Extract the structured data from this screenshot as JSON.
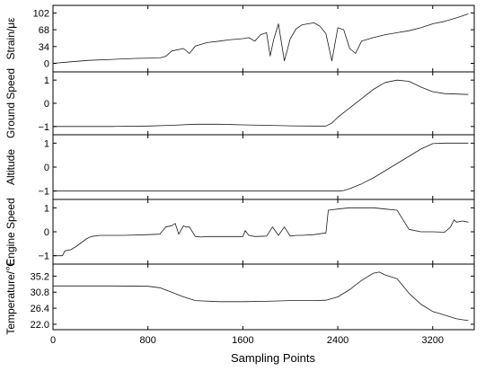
{
  "chart_data": {
    "type": "line",
    "title": "",
    "xlabel": "Sampling Points",
    "xlim": [
      0,
      3550
    ],
    "xticks": [
      0,
      800,
      1600,
      2400,
      3200
    ],
    "shared_x_axis": true,
    "grid": false,
    "panels": [
      {
        "ylabel": "Strain/με",
        "ylim": [
          -10,
          110
        ],
        "yticks": [
          "0",
          "34",
          "68",
          "102"
        ],
        "ytick_values": [
          0,
          34,
          68,
          102
        ],
        "x": [
          0,
          150,
          300,
          500,
          700,
          900,
          950,
          1000,
          1100,
          1150,
          1200,
          1300,
          1400,
          1500,
          1600,
          1650,
          1700,
          1750,
          1800,
          1830,
          1860,
          1900,
          1950,
          2000,
          2050,
          2100,
          2200,
          2250,
          2300,
          2350,
          2400,
          2450,
          2500,
          2550,
          2600,
          2700,
          2800,
          2900,
          3000,
          3100,
          3200,
          3300,
          3400,
          3500
        ],
        "y": [
          0,
          3,
          6,
          8,
          10,
          11,
          14,
          25,
          30,
          20,
          35,
          42,
          45,
          48,
          50,
          52,
          45,
          58,
          62,
          15,
          48,
          80,
          5,
          50,
          70,
          78,
          82,
          75,
          60,
          5,
          72,
          68,
          30,
          20,
          45,
          52,
          58,
          62,
          66,
          72,
          80,
          85,
          92,
          100
        ]
      },
      {
        "ylabel": "Ground Speed",
        "ylim": [
          -1.2,
          1.2
        ],
        "yticks": [
          "−1",
          "0",
          "1"
        ],
        "ytick_values": [
          -1,
          0,
          1
        ],
        "x": [
          0,
          500,
          800,
          1000,
          1200,
          1400,
          1600,
          1800,
          2000,
          2200,
          2300,
          2350,
          2400,
          2500,
          2600,
          2700,
          2800,
          2900,
          3000,
          3100,
          3200,
          3300,
          3400,
          3500
        ],
        "y": [
          -1,
          -1,
          -0.98,
          -0.95,
          -0.9,
          -0.9,
          -0.93,
          -0.95,
          -0.97,
          -0.98,
          -0.98,
          -0.85,
          -0.6,
          -0.2,
          0.2,
          0.6,
          0.9,
          1.0,
          0.95,
          0.7,
          0.5,
          0.42,
          0.4,
          0.38
        ]
      },
      {
        "ylabel": "Altitude",
        "ylim": [
          -1.2,
          1.2
        ],
        "yticks": [
          "−1",
          "0",
          "1"
        ],
        "ytick_values": [
          -1,
          0,
          1
        ],
        "x": [
          0,
          500,
          1000,
          1500,
          2000,
          2300,
          2400,
          2450,
          2500,
          2600,
          2700,
          2800,
          2900,
          3000,
          3100,
          3200,
          3300,
          3400,
          3500
        ],
        "y": [
          -1,
          -1,
          -1,
          -1,
          -1,
          -1,
          -1,
          -0.98,
          -0.9,
          -0.7,
          -0.45,
          -0.15,
          0.15,
          0.45,
          0.75,
          0.98,
          1.0,
          1.0,
          1.0
        ]
      },
      {
        "ylabel": "Engine Speed",
        "ylim": [
          -1.2,
          1.2
        ],
        "yticks": [
          "−1",
          "0",
          "1"
        ],
        "ytick_values": [
          -1,
          0,
          1
        ],
        "x": [
          0,
          80,
          100,
          150,
          200,
          280,
          320,
          400,
          600,
          800,
          900,
          950,
          1000,
          1030,
          1060,
          1100,
          1120,
          1150,
          1200,
          1250,
          1300,
          1600,
          1620,
          1650,
          1700,
          1800,
          1850,
          1900,
          1950,
          2000,
          2050,
          2100,
          2200,
          2300,
          2320,
          2400,
          2500,
          2700,
          2800,
          2900,
          2950,
          3000,
          3100,
          3200,
          3300,
          3350,
          3380,
          3400,
          3450,
          3500
        ],
        "y": [
          -1,
          -1,
          -0.8,
          -0.75,
          -0.6,
          -0.3,
          -0.2,
          -0.15,
          -0.15,
          -0.12,
          -0.1,
          0.2,
          0.25,
          0.35,
          -0.1,
          0.25,
          0.2,
          0.2,
          -0.2,
          -0.22,
          -0.2,
          -0.2,
          0.05,
          -0.15,
          -0.2,
          -0.18,
          0.2,
          -0.15,
          0.2,
          -0.18,
          -0.15,
          -0.15,
          -0.12,
          -0.05,
          0.9,
          0.95,
          1.0,
          1.0,
          0.95,
          0.9,
          0.5,
          0.1,
          0.0,
          0.0,
          -0.02,
          0.2,
          0.5,
          0.4,
          0.45,
          0.4
        ]
      },
      {
        "ylabel": "Temperature/℃",
        "ylim": [
          21.5,
          37.5
        ],
        "yticks": [
          "22.0",
          "26.4",
          "30.8",
          "35.2"
        ],
        "ytick_values": [
          22.0,
          26.4,
          30.8,
          35.2
        ],
        "x": [
          0,
          200,
          500,
          800,
          900,
          1000,
          1100,
          1200,
          1400,
          1600,
          1800,
          2000,
          2200,
          2300,
          2400,
          2500,
          2600,
          2700,
          2750,
          2800,
          2900,
          3000,
          3100,
          3200,
          3300,
          3400,
          3500
        ],
        "y": [
          32.5,
          32.5,
          32.5,
          32.4,
          32.0,
          30.8,
          29.5,
          28.5,
          28.2,
          28.2,
          28.3,
          28.5,
          28.5,
          28.6,
          29.5,
          31.5,
          34.0,
          36.0,
          36.3,
          35.5,
          34.5,
          30.5,
          27.5,
          25.5,
          24.5,
          23.5,
          23.0
        ]
      }
    ]
  }
}
